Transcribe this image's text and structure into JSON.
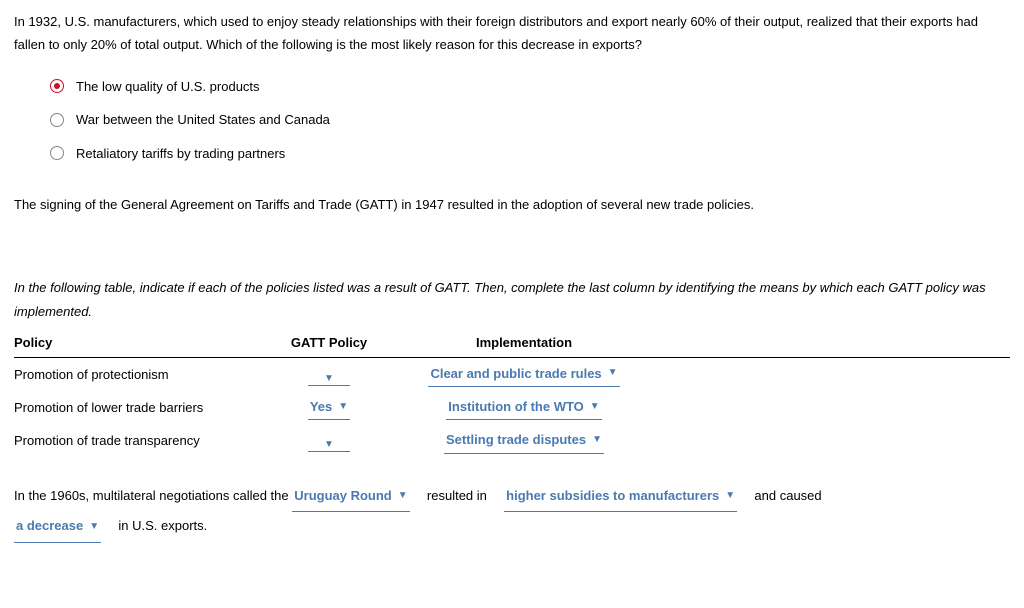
{
  "colors": {
    "accent_red": "#c8102e",
    "link_blue": "#4a7ab0",
    "text": "#000000",
    "background": "#ffffff",
    "radio_border": "#888888",
    "rule": "#000000"
  },
  "q1": {
    "text": "In 1932, U.S. manufacturers, which used to enjoy steady relationships with their foreign distributors and export nearly 60% of their output, realized that their exports had fallen to only 20% of total output. Which of the following is the most likely reason for this decrease in exports?",
    "options": [
      {
        "label": "The low quality of U.S. products",
        "selected": true
      },
      {
        "label": "War between the United States and Canada",
        "selected": false
      },
      {
        "label": "Retaliatory tariffs by trading partners",
        "selected": false
      }
    ]
  },
  "gatt_intro": "The signing of the General Agreement on Tariffs and Trade (GATT) in 1947 resulted in the adoption of several new trade policies.",
  "table_instruction": "In the following table, indicate if each of the policies listed was a result of GATT. Then, complete the last column by identifying the means by which each GATT policy was implemented.",
  "table": {
    "headers": {
      "policy": "Policy",
      "gatt": "GATT Policy",
      "impl": "Implementation"
    },
    "rows": [
      {
        "policy": "Promotion of protectionism",
        "gatt": "",
        "impl": "Clear and public trade rules"
      },
      {
        "policy": "Promotion of lower trade barriers",
        "gatt": "Yes",
        "impl": "Institution of the WTO"
      },
      {
        "policy": "Promotion of trade transparency",
        "gatt": "",
        "impl": "Settling trade disputes"
      }
    ]
  },
  "fill": {
    "p1": "In the 1960s, multilateral negotiations called the",
    "d1": "Uruguay Round",
    "p2": "resulted in",
    "d2": "higher subsidies to manufacturers",
    "p3": "and caused",
    "d3": "a decrease",
    "p4": "in U.S. exports."
  },
  "glyphs": {
    "caret": "▼"
  }
}
